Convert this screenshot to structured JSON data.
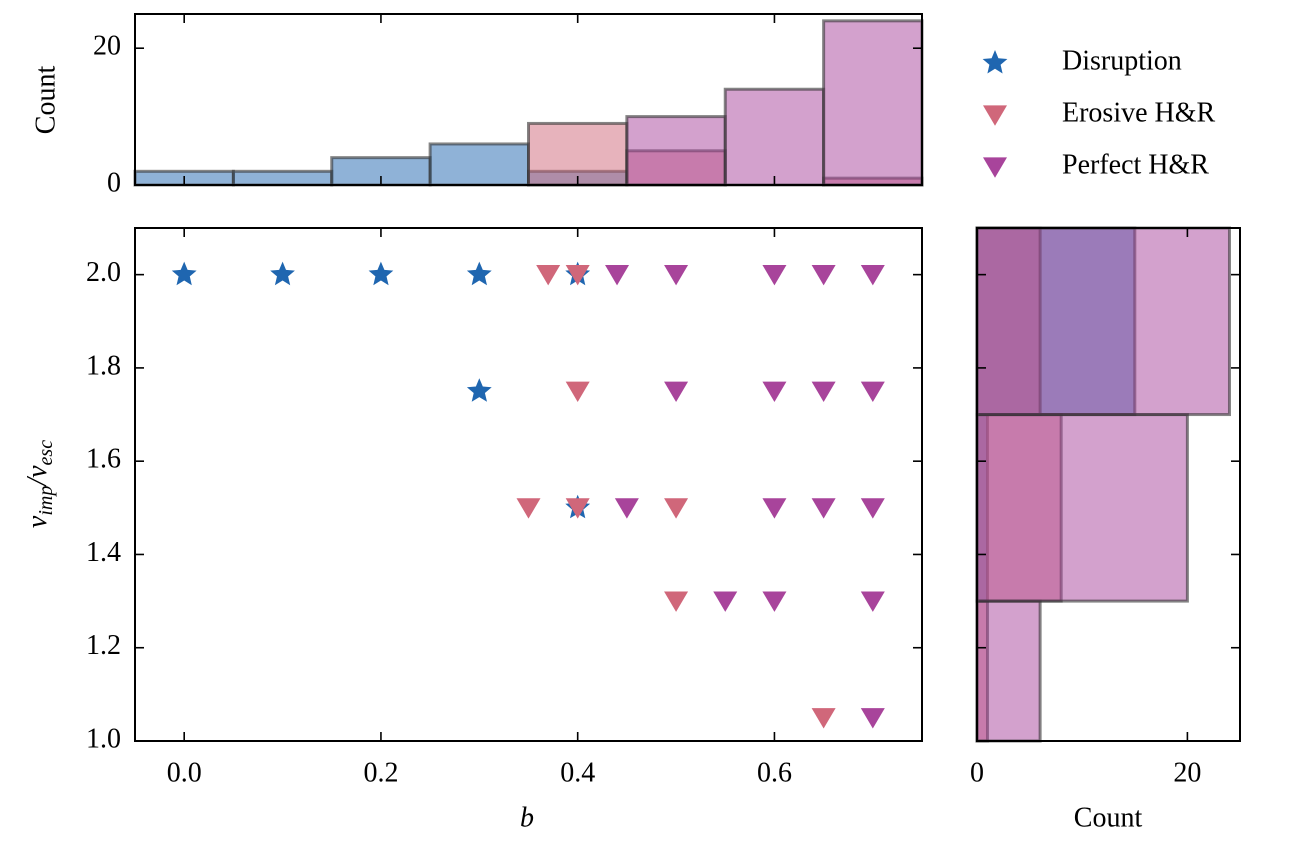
{
  "chart_data": [
    {
      "type": "scatter",
      "xlabel": "b",
      "ylabel": [
        "v",
        "imp",
        "/v",
        "esc"
      ],
      "xlim": [
        -0.05,
        0.75
      ],
      "xticks": [
        {
          "value": 0,
          "label": "0.0"
        },
        {
          "value": 0.2,
          "label": "0.2"
        },
        {
          "value": 0.4,
          "label": "0.4"
        },
        {
          "value": 0.6,
          "label": "0.6"
        }
      ],
      "ylim": [
        1.0,
        2.1
      ],
      "yticks": [
        {
          "value": 1.0,
          "label": "1.0"
        },
        {
          "value": 1.2,
          "label": "1.2"
        },
        {
          "value": 1.4,
          "label": "1.4"
        },
        {
          "value": 1.6,
          "label": "1.6"
        },
        {
          "value": 1.8,
          "label": "1.8"
        },
        {
          "value": 2.0,
          "label": "2.0"
        }
      ],
      "legend": "outside right",
      "series": [
        {
          "name": "Disruption",
          "color": "#1f66b0",
          "marker": "star",
          "x": [
            0,
            0.1,
            0.2,
            0.3,
            0.4,
            0.3,
            0.4
          ],
          "values": [
            2.0,
            2.0,
            2.0,
            2.0,
            2.0,
            1.75,
            1.5
          ]
        },
        {
          "name": "Erosive H&R",
          "color": "#d0677a",
          "marker": "triangle-down",
          "x": [
            0.37,
            0.4,
            0.4,
            0.35,
            0.4,
            0.5,
            0.5,
            0.65
          ],
          "values": [
            2.0,
            2.0,
            1.75,
            1.5,
            1.5,
            1.5,
            1.3,
            1.05
          ]
        },
        {
          "name": "Perfect H&R",
          "color": "#a8449b",
          "marker": "triangle-down",
          "x": [
            0.44,
            0.5,
            0.6,
            0.65,
            0.7,
            0.5,
            0.6,
            0.65,
            0.7,
            0.45,
            0.6,
            0.65,
            0.7,
            0.55,
            0.6,
            0.7,
            0.7
          ],
          "values": [
            2.0,
            2.0,
            2.0,
            2.0,
            2.0,
            1.75,
            1.75,
            1.75,
            1.75,
            1.5,
            1.5,
            1.5,
            1.5,
            1.3,
            1.3,
            1.3,
            1.05
          ]
        }
      ]
    },
    {
      "type": "histogram",
      "ylabel": "Count",
      "ylim": [
        0,
        25
      ],
      "yticks": [
        0,
        20
      ],
      "bins": [
        -0.05,
        0.05,
        0.15,
        0.25,
        0.35,
        0.45,
        0.55,
        0.65,
        0.75
      ],
      "series": [
        {
          "color": "#1f66b0",
          "values": [
            2,
            2,
            4,
            6,
            2,
            0,
            0,
            0
          ]
        },
        {
          "color": "#d0677a",
          "values": [
            0,
            0,
            0,
            0,
            9,
            5,
            0,
            1
          ]
        },
        {
          "color": "#a8449b",
          "values": [
            0,
            0,
            0,
            0,
            0,
            10,
            14,
            24
          ]
        }
      ]
    },
    {
      "type": "histogram-horizontal",
      "xlabel": "Count",
      "xlim": [
        0,
        25
      ],
      "xticks": [
        0,
        20
      ],
      "bins": [
        1.0,
        1.3,
        1.7,
        2.1
      ],
      "series": [
        {
          "color": "#1f66b0",
          "values": [
            0,
            1,
            15
          ]
        },
        {
          "color": "#d0677a",
          "values": [
            1,
            8,
            6
          ]
        },
        {
          "color": "#a8449b",
          "values": [
            6,
            20,
            24
          ]
        }
      ]
    }
  ]
}
